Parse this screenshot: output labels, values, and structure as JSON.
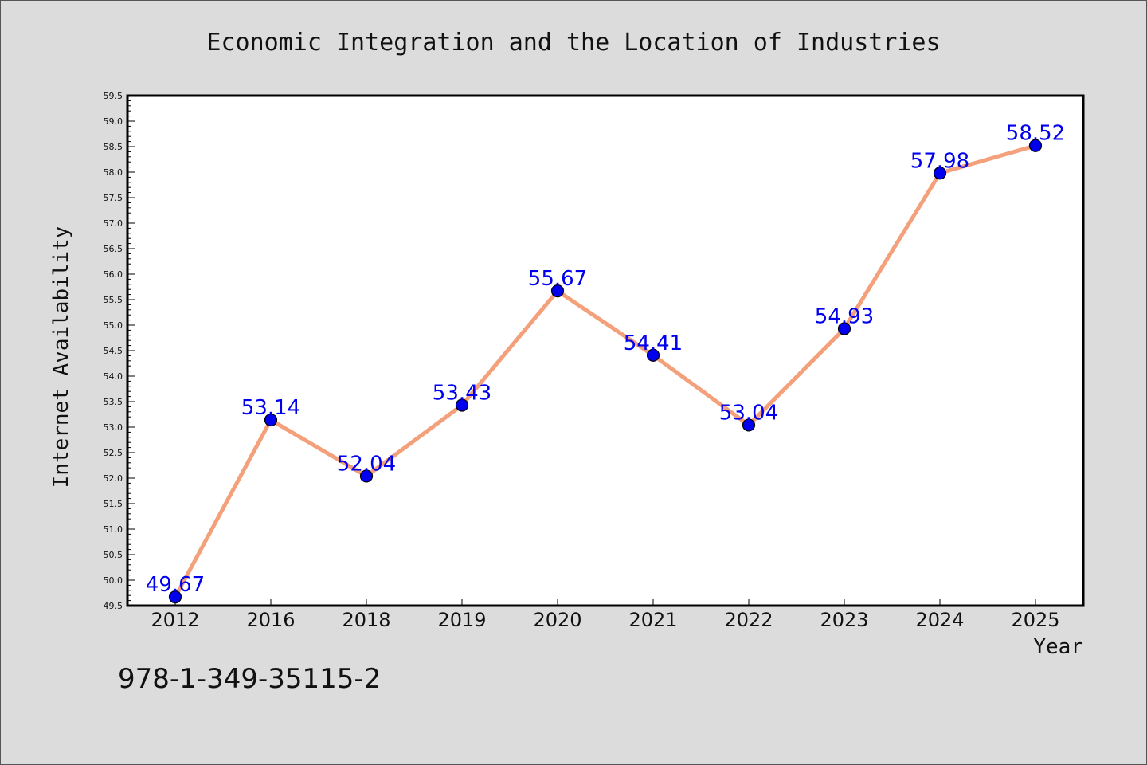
{
  "chart_data": {
    "type": "line",
    "title": "Economic Integration and the Location of Industries",
    "xlabel": "Year",
    "ylabel": "Internet Availability",
    "categories": [
      "2012",
      "2016",
      "2018",
      "2019",
      "2020",
      "2021",
      "2022",
      "2023",
      "2024",
      "2025"
    ],
    "series": [
      {
        "values": [
          49.67,
          53.14,
          52.04,
          53.43,
          55.67,
          54.41,
          53.04,
          54.93,
          57.98,
          58.52
        ]
      }
    ],
    "data_labels": [
      "49.67",
      "53.14",
      "52.04",
      "53.43",
      "55.67",
      "54.41",
      "53.04",
      "54.93",
      "57.98",
      "58.52"
    ],
    "ylim": [
      49.5,
      59.5
    ],
    "y_ticks": [
      "49.5",
      "50.0",
      "50.5",
      "51.0",
      "51.5",
      "52.0",
      "52.5",
      "53.0",
      "53.5",
      "54.0",
      "54.5",
      "55.0",
      "55.5",
      "56.0",
      "56.5",
      "57.0",
      "57.5",
      "58.0",
      "58.5",
      "59.0",
      "59.5"
    ],
    "grid": false,
    "colors": {
      "line": "#f4a07a",
      "marker": "#0000ee",
      "label": "#0000ee",
      "plot_bg": "#ffffff",
      "figure_bg": "#dcdcdc"
    }
  },
  "footer_text": "978-1-349-35115-2"
}
